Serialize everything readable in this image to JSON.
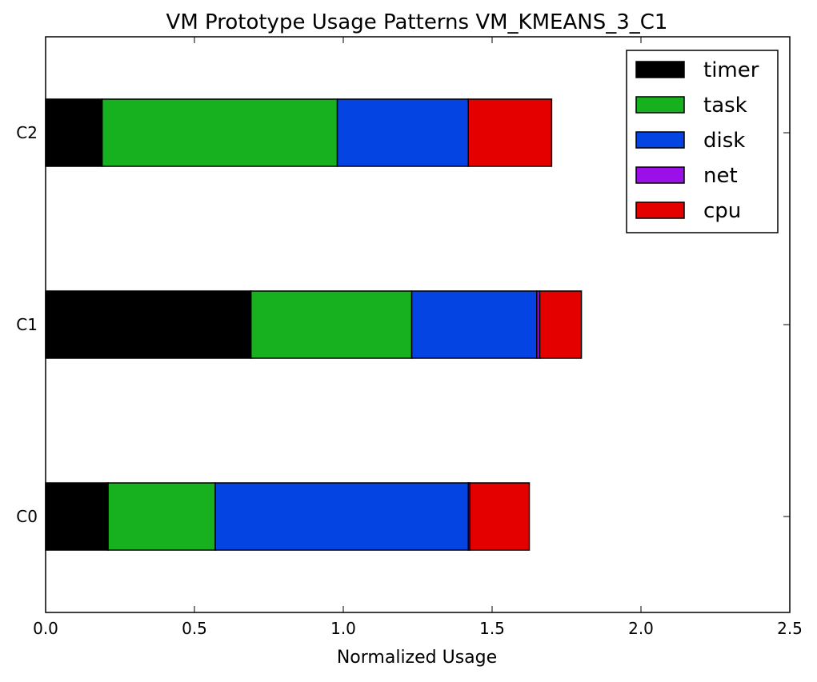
{
  "chart_data": {
    "type": "bar",
    "orientation": "horizontal",
    "stacked": true,
    "title": "VM Prototype Usage Patterns VM_KMEANS_3_C1",
    "xlabel": "Normalized Usage",
    "ylabel": "",
    "xlim": [
      0.0,
      2.5
    ],
    "xticks": [
      "0.0",
      "0.5",
      "1.0",
      "1.5",
      "2.0",
      "2.5"
    ],
    "categories": [
      "C0",
      "C1",
      "C2"
    ],
    "series": [
      {
        "name": "timer",
        "color": "#000000",
        "values": [
          0.21,
          0.69,
          0.19
        ]
      },
      {
        "name": "task",
        "color": "#17b01f",
        "values": [
          0.36,
          0.54,
          0.79
        ]
      },
      {
        "name": "disk",
        "color": "#0444e2",
        "values": [
          0.85,
          0.42,
          0.44
        ]
      },
      {
        "name": "net",
        "color": "#9b10e9",
        "values": [
          0.005,
          0.01,
          0.0
        ]
      },
      {
        "name": "cpu",
        "color": "#e50000",
        "values": [
          0.2,
          0.14,
          0.28
        ]
      }
    ],
    "grid": false,
    "legend_position": "top-right"
  }
}
